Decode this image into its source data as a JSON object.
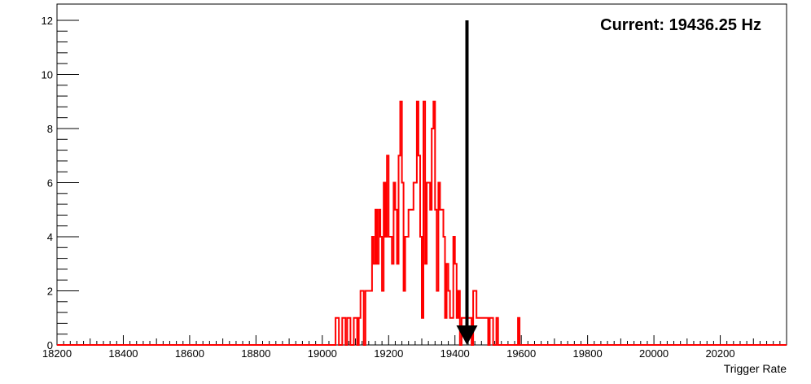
{
  "chart_data": {
    "type": "step",
    "xlabel": "Trigger Rate",
    "ylabel": "",
    "title": "",
    "xlim": [
      18200,
      20400
    ],
    "ylim": [
      0,
      12.6
    ],
    "x_ticks": [
      18200,
      18400,
      18600,
      18800,
      19000,
      19200,
      19400,
      19600,
      19800,
      20000,
      20200
    ],
    "y_ticks": [
      0,
      2,
      4,
      6,
      8,
      10,
      12
    ],
    "annotation": "Current: 19436.25 Hz",
    "current_value": 19436.25,
    "arrow": {
      "x": 19436.25,
      "y_from": 12,
      "y_to": 0
    },
    "colors": {
      "series": "#ff0000",
      "arrow": "#000000",
      "frame": "#000000"
    },
    "series": [
      {
        "step_points": [
          [
            18200,
            0
          ],
          [
            19040,
            0
          ],
          [
            19040,
            1
          ],
          [
            19050,
            1
          ],
          [
            19050,
            0
          ],
          [
            19060,
            0
          ],
          [
            19060,
            1
          ],
          [
            19070,
            1
          ],
          [
            19070,
            0
          ],
          [
            19075,
            0
          ],
          [
            19075,
            1
          ],
          [
            19085,
            1
          ],
          [
            19085,
            0
          ],
          [
            19095,
            0
          ],
          [
            19095,
            1
          ],
          [
            19105,
            1
          ],
          [
            19105,
            0
          ],
          [
            19110,
            0
          ],
          [
            19110,
            1
          ],
          [
            19115,
            1
          ],
          [
            19115,
            2
          ],
          [
            19125,
            2
          ],
          [
            19125,
            0
          ],
          [
            19130,
            0
          ],
          [
            19130,
            2
          ],
          [
            19150,
            2
          ],
          [
            19150,
            4
          ],
          [
            19155,
            4
          ],
          [
            19155,
            3
          ],
          [
            19160,
            3
          ],
          [
            19160,
            5
          ],
          [
            19165,
            5
          ],
          [
            19165,
            3
          ],
          [
            19170,
            3
          ],
          [
            19170,
            5
          ],
          [
            19175,
            5
          ],
          [
            19175,
            4
          ],
          [
            19180,
            4
          ],
          [
            19180,
            2
          ],
          [
            19185,
            2
          ],
          [
            19185,
            6
          ],
          [
            19190,
            6
          ],
          [
            19190,
            4
          ],
          [
            19195,
            4
          ],
          [
            19195,
            7
          ],
          [
            19200,
            7
          ],
          [
            19200,
            4
          ],
          [
            19210,
            4
          ],
          [
            19210,
            3
          ],
          [
            19215,
            3
          ],
          [
            19215,
            6
          ],
          [
            19220,
            6
          ],
          [
            19220,
            5
          ],
          [
            19225,
            5
          ],
          [
            19225,
            3
          ],
          [
            19230,
            3
          ],
          [
            19230,
            7
          ],
          [
            19235,
            7
          ],
          [
            19235,
            9
          ],
          [
            19240,
            9
          ],
          [
            19240,
            6
          ],
          [
            19245,
            6
          ],
          [
            19245,
            2
          ],
          [
            19250,
            2
          ],
          [
            19250,
            4
          ],
          [
            19260,
            4
          ],
          [
            19260,
            5
          ],
          [
            19275,
            5
          ],
          [
            19275,
            6
          ],
          [
            19285,
            6
          ],
          [
            19285,
            9
          ],
          [
            19290,
            9
          ],
          [
            19290,
            7
          ],
          [
            19295,
            7
          ],
          [
            19295,
            4
          ],
          [
            19300,
            4
          ],
          [
            19300,
            1
          ],
          [
            19305,
            1
          ],
          [
            19305,
            9
          ],
          [
            19310,
            9
          ],
          [
            19310,
            3
          ],
          [
            19315,
            3
          ],
          [
            19315,
            6
          ],
          [
            19325,
            6
          ],
          [
            19325,
            5
          ],
          [
            19330,
            5
          ],
          [
            19330,
            8
          ],
          [
            19335,
            8
          ],
          [
            19335,
            9
          ],
          [
            19340,
            9
          ],
          [
            19340,
            5
          ],
          [
            19345,
            5
          ],
          [
            19345,
            2
          ],
          [
            19350,
            2
          ],
          [
            19350,
            6
          ],
          [
            19355,
            6
          ],
          [
            19355,
            5
          ],
          [
            19365,
            5
          ],
          [
            19365,
            4
          ],
          [
            19370,
            4
          ],
          [
            19370,
            1
          ],
          [
            19375,
            1
          ],
          [
            19375,
            3
          ],
          [
            19380,
            3
          ],
          [
            19380,
            2
          ],
          [
            19385,
            2
          ],
          [
            19385,
            1
          ],
          [
            19395,
            1
          ],
          [
            19395,
            4
          ],
          [
            19400,
            4
          ],
          [
            19400,
            3
          ],
          [
            19405,
            3
          ],
          [
            19405,
            1
          ],
          [
            19410,
            1
          ],
          [
            19410,
            2
          ],
          [
            19415,
            2
          ],
          [
            19415,
            0
          ],
          [
            19420,
            0
          ],
          [
            19420,
            1
          ],
          [
            19450,
            1
          ],
          [
            19450,
            0
          ],
          [
            19455,
            0
          ],
          [
            19455,
            2
          ],
          [
            19465,
            2
          ],
          [
            19465,
            1
          ],
          [
            19500,
            1
          ],
          [
            19500,
            0
          ],
          [
            19505,
            0
          ],
          [
            19505,
            1
          ],
          [
            19515,
            1
          ],
          [
            19515,
            0
          ],
          [
            19525,
            0
          ],
          [
            19525,
            1
          ],
          [
            19530,
            1
          ],
          [
            19530,
            0
          ],
          [
            19590,
            0
          ],
          [
            19590,
            1
          ],
          [
            19595,
            1
          ],
          [
            19595,
            0
          ],
          [
            20400,
            0
          ]
        ]
      }
    ]
  }
}
